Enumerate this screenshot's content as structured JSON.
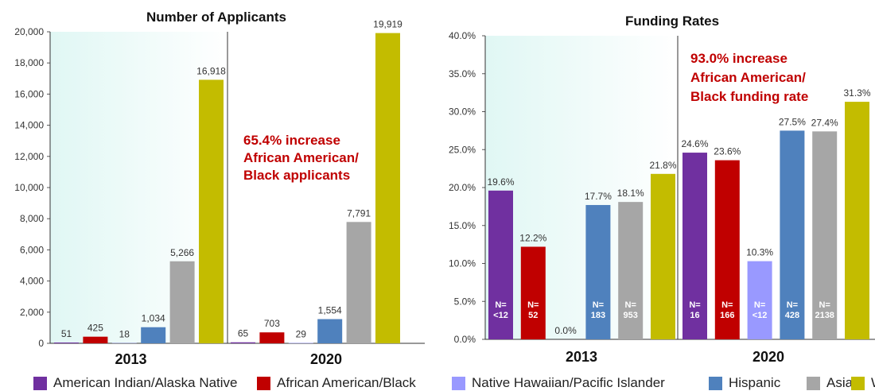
{
  "colors": {
    "American Indian/Alaska Native": "#7030a0",
    "African American/Black": "#c00000",
    "Native Hawaiian/Pacific Islander": "#9999ff",
    "Hispanic": "#4f81bd",
    "Asian": "#a6a6a6",
    "White": "#c3bc00",
    "annotation": "#c00000",
    "background_gradient_left": "#e0f7f4",
    "background_gradient_right": "#ffffff"
  },
  "legend": [
    {
      "label": "American Indian/Alaska Native",
      "color": "#7030a0"
    },
    {
      "label": "African American/Black",
      "color": "#c00000"
    },
    {
      "label": "Native Hawaiian/Pacific Islander",
      "color": "#9999ff"
    },
    {
      "label": "Hispanic",
      "color": "#4f81bd"
    },
    {
      "label": "Asian",
      "color": "#a6a6a6"
    },
    {
      "label": "White",
      "color": "#c3bc00"
    }
  ],
  "chart_data": [
    {
      "type": "bar",
      "title": "Number of Applicants",
      "groups": [
        "2013",
        "2020"
      ],
      "series_names": [
        "American Indian/Alaska Native",
        "African American/Black",
        "Native Hawaiian/Pacific Islander",
        "Hispanic",
        "Asian",
        "White"
      ],
      "values": {
        "2013": [
          51,
          425,
          18,
          1034,
          5266,
          16918
        ],
        "2020": [
          65,
          703,
          29,
          1554,
          7791,
          19919
        ]
      },
      "labels": {
        "2013": [
          "51",
          "425",
          "18",
          "1,034",
          "5,266",
          "16,918"
        ],
        "2020": [
          "65",
          "703",
          "29",
          "1,554",
          "7,791",
          "19,919"
        ]
      },
      "ylim": [
        0,
        20000
      ],
      "yticks": [
        0,
        2000,
        4000,
        6000,
        8000,
        10000,
        12000,
        14000,
        16000,
        18000,
        20000
      ],
      "ytick_labels": [
        "0",
        "2,000",
        "4,000",
        "6,000",
        "8,000",
        "10,000",
        "12,000",
        "14,000",
        "16,000",
        "18,000",
        "20,000"
      ],
      "annotation": [
        "65.4% increase",
        "African American/",
        "Black applicants"
      ],
      "legend_position": "bottom"
    },
    {
      "type": "bar",
      "title": "Funding Rates",
      "groups": [
        "2013",
        "2020"
      ],
      "series_names": [
        "American Indian/Alaska Native",
        "African American/Black",
        "Native Hawaiian/Pacific Islander",
        "Hispanic",
        "Asian",
        "White"
      ],
      "values": {
        "2013": [
          19.6,
          12.2,
          0.0,
          17.7,
          18.1,
          21.8
        ],
        "2020": [
          24.6,
          23.6,
          10.3,
          27.5,
          27.4,
          31.3
        ]
      },
      "labels": {
        "2013": [
          "19.6%",
          "12.2%",
          "0.0%",
          "17.7%",
          "18.1%",
          "21.8%"
        ],
        "2020": [
          "24.6%",
          "23.6%",
          "10.3%",
          "27.5%",
          "27.4%",
          "31.3%"
        ]
      },
      "counts": {
        "2013": [
          "N=\n<12",
          "N=\n52",
          "",
          "N=\n183",
          "N=\n953",
          ""
        ],
        "2020": [
          "N=\n16",
          "N=\n166",
          "N=\n<12",
          "N=\n428",
          "N=\n2138",
          ""
        ]
      },
      "ylim": [
        0,
        40
      ],
      "yticks": [
        0,
        5,
        10,
        15,
        20,
        25,
        30,
        35,
        40
      ],
      "ytick_labels": [
        "0.0%",
        "5.0%",
        "10.0%",
        "15.0%",
        "20.0%",
        "25.0%",
        "30.0%",
        "35.0%",
        "40.0%"
      ],
      "annotation": [
        "93.0% increase",
        "African American/",
        "Black funding rate"
      ],
      "legend_position": "bottom"
    }
  ]
}
